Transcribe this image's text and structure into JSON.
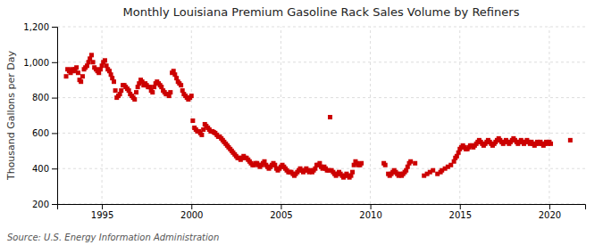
{
  "chart_data": {
    "type": "scatter",
    "title": "Monthly Louisiana Premium Gasoline Rack Sales Volume by Refiners",
    "y_label": "Thousand Gallons per Day",
    "annotations": [
      "Source: U.S. Energy Information Administration"
    ],
    "color": "#cc0000",
    "marker": "square",
    "grid": true,
    "xlim": [
      1992.5,
      2022.0
    ],
    "xticks": [
      1995,
      2000,
      2005,
      2010,
      2015,
      2020
    ],
    "ylim": [
      200,
      1200
    ],
    "yticks": [
      200,
      400,
      600,
      800,
      {
        "value": 1000,
        "label": "1,000"
      },
      {
        "value": 1200,
        "label": "1,200"
      }
    ],
    "x": [
      1993.0,
      1993.08,
      1993.17,
      1993.25,
      1993.33,
      1993.42,
      1993.5,
      1993.58,
      1993.67,
      1993.75,
      1993.83,
      1993.92,
      1994.0,
      1994.08,
      1994.17,
      1994.25,
      1994.33,
      1994.42,
      1994.5,
      1994.58,
      1994.67,
      1994.75,
      1994.83,
      1994.92,
      1995.0,
      1995.08,
      1995.17,
      1995.25,
      1995.33,
      1995.42,
      1995.5,
      1995.58,
      1995.67,
      1995.75,
      1995.83,
      1995.92,
      1996.0,
      1996.08,
      1996.17,
      1996.25,
      1996.33,
      1996.42,
      1996.5,
      1996.58,
      1996.67,
      1996.75,
      1996.83,
      1996.92,
      1997.0,
      1997.08,
      1997.17,
      1997.25,
      1997.33,
      1997.42,
      1997.5,
      1997.58,
      1997.67,
      1997.75,
      1997.83,
      1997.92,
      1998.0,
      1998.08,
      1998.17,
      1998.25,
      1998.33,
      1998.42,
      1998.5,
      1998.58,
      1998.67,
      1998.75,
      1998.83,
      1998.92,
      1999.0,
      1999.08,
      1999.17,
      1999.25,
      1999.33,
      1999.42,
      1999.5,
      1999.58,
      1999.67,
      1999.75,
      1999.83,
      1999.92,
      2000.0,
      2000.08,
      2000.17,
      2000.25,
      2000.33,
      2000.42,
      2000.5,
      2000.58,
      2000.67,
      2000.75,
      2000.83,
      2000.92,
      2001.0,
      2001.08,
      2001.17,
      2001.25,
      2001.33,
      2001.42,
      2001.5,
      2001.58,
      2001.67,
      2001.75,
      2001.83,
      2001.92,
      2002.0,
      2002.08,
      2002.17,
      2002.25,
      2002.33,
      2002.42,
      2002.5,
      2002.58,
      2002.67,
      2002.75,
      2002.83,
      2002.92,
      2003.0,
      2003.08,
      2003.17,
      2003.25,
      2003.33,
      2003.42,
      2003.5,
      2003.58,
      2003.67,
      2003.75,
      2003.83,
      2003.92,
      2004.0,
      2004.08,
      2004.17,
      2004.25,
      2004.33,
      2004.42,
      2004.5,
      2004.58,
      2004.67,
      2004.75,
      2004.83,
      2004.92,
      2005.0,
      2005.08,
      2005.17,
      2005.25,
      2005.33,
      2005.42,
      2005.5,
      2005.58,
      2005.67,
      2005.75,
      2005.83,
      2005.92,
      2006.0,
      2006.08,
      2006.17,
      2006.25,
      2006.33,
      2006.42,
      2006.5,
      2006.58,
      2006.67,
      2006.75,
      2006.83,
      2006.92,
      2007.0,
      2007.08,
      2007.17,
      2007.25,
      2007.33,
      2007.42,
      2007.5,
      2007.58,
      2007.67,
      2007.75,
      2007.83,
      2007.92,
      2008.0,
      2008.08,
      2008.17,
      2008.25,
      2008.33,
      2008.42,
      2008.5,
      2008.58,
      2008.67,
      2008.75,
      2008.83,
      2008.92,
      2009.0,
      2009.08,
      2009.17,
      2009.25,
      2009.33,
      2009.42,
      2009.5,
      2010.75,
      2010.83,
      2011.0,
      2011.08,
      2011.17,
      2011.25,
      2011.33,
      2011.42,
      2011.5,
      2011.58,
      2011.67,
      2011.75,
      2011.83,
      2011.92,
      2012.0,
      2012.08,
      2012.17,
      2012.25,
      2012.5,
      2013.0,
      2013.17,
      2013.33,
      2013.5,
      2013.75,
      2013.92,
      2014.0,
      2014.17,
      2014.33,
      2014.5,
      2014.67,
      2014.75,
      2014.83,
      2014.92,
      2015.0,
      2015.08,
      2015.17,
      2015.25,
      2015.33,
      2015.42,
      2015.5,
      2015.58,
      2015.67,
      2015.75,
      2015.83,
      2015.92,
      2016.0,
      2016.08,
      2016.17,
      2016.25,
      2016.33,
      2016.42,
      2016.5,
      2016.58,
      2016.67,
      2016.75,
      2016.83,
      2016.92,
      2017.0,
      2017.08,
      2017.17,
      2017.25,
      2017.33,
      2017.42,
      2017.5,
      2017.58,
      2017.67,
      2017.75,
      2017.83,
      2017.92,
      2018.0,
      2018.08,
      2018.17,
      2018.25,
      2018.33,
      2018.42,
      2018.5,
      2018.58,
      2018.67,
      2018.75,
      2018.83,
      2018.92,
      2019.0,
      2019.08,
      2019.17,
      2019.25,
      2019.33,
      2019.42,
      2019.5,
      2019.58,
      2019.67,
      2019.75,
      2019.83,
      2019.92,
      2020.0,
      2020.08,
      2021.17
    ],
    "values": [
      920,
      960,
      950,
      940,
      960,
      950,
      960,
      970,
      940,
      900,
      890,
      920,
      960,
      970,
      980,
      1000,
      1020,
      1040,
      1000,
      970,
      960,
      950,
      940,
      960,
      980,
      1000,
      1010,
      980,
      960,
      950,
      930,
      910,
      890,
      840,
      800,
      810,
      820,
      840,
      870,
      870,
      860,
      850,
      840,
      820,
      810,
      800,
      790,
      830,
      860,
      880,
      900,
      890,
      870,
      880,
      870,
      860,
      860,
      840,
      830,
      860,
      880,
      890,
      880,
      870,
      860,
      840,
      830,
      820,
      820,
      810,
      830,
      940,
      950,
      930,
      910,
      890,
      880,
      870,
      840,
      820,
      810,
      800,
      790,
      800,
      810,
      670,
      630,
      620,
      610,
      610,
      600,
      590,
      620,
      650,
      640,
      630,
      620,
      610,
      610,
      605,
      600,
      590,
      580,
      580,
      570,
      560,
      550,
      540,
      530,
      520,
      510,
      500,
      490,
      480,
      470,
      460,
      460,
      450,
      460,
      470,
      460,
      460,
      450,
      440,
      430,
      420,
      420,
      430,
      430,
      420,
      410,
      420,
      430,
      440,
      420,
      410,
      400,
      410,
      420,
      430,
      420,
      400,
      390,
      400,
      410,
      420,
      410,
      400,
      390,
      380,
      380,
      380,
      370,
      360,
      370,
      380,
      390,
      400,
      390,
      380,
      390,
      400,
      390,
      380,
      390,
      380,
      390,
      400,
      420,
      420,
      430,
      410,
      400,
      410,
      400,
      390,
      390,
      690,
      390,
      380,
      370,
      360,
      370,
      380,
      370,
      360,
      350,
      360,
      370,
      360,
      350,
      360,
      380,
      420,
      440,
      430,
      420,
      420,
      430,
      430,
      420,
      370,
      360,
      370,
      380,
      390,
      380,
      370,
      360,
      370,
      360,
      370,
      380,
      390,
      410,
      430,
      440,
      430,
      360,
      370,
      380,
      390,
      370,
      380,
      390,
      400,
      410,
      420,
      440,
      460,
      470,
      490,
      510,
      520,
      530,
      520,
      510,
      510,
      520,
      530,
      530,
      520,
      530,
      540,
      550,
      560,
      550,
      540,
      530,
      540,
      550,
      560,
      550,
      540,
      530,
      540,
      550,
      560,
      570,
      560,
      550,
      540,
      550,
      560,
      550,
      540,
      550,
      560,
      570,
      560,
      550,
      540,
      550,
      560,
      550,
      540,
      550,
      560,
      550,
      540,
      550,
      540,
      530,
      540,
      550,
      540,
      550,
      540,
      530,
      540,
      550,
      540,
      550,
      540,
      560
    ]
  }
}
